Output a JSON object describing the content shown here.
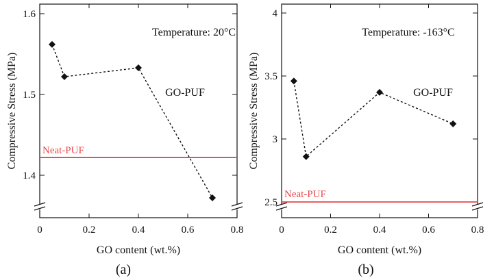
{
  "chart_data": [
    {
      "type": "line",
      "panel_label": "(a)",
      "annotation": "Temperature: 20°C",
      "xlabel": "GO content (wt.%)",
      "ylabel": "Compressive Stress (MPa)",
      "xlim": [
        0,
        0.8
      ],
      "ylim": [
        1.3,
        1.6
      ],
      "y_axis_break": true,
      "xticks": [
        0,
        0.2,
        0.4,
        0.6,
        0.8
      ],
      "xtick_labels": [
        "0",
        "0.2",
        "0.4",
        "0.6",
        "0.8"
      ],
      "yticks": [
        1.4,
        1.5,
        1.6
      ],
      "ytick_labels": [
        "1.4",
        "1.5",
        "1.6"
      ],
      "series": [
        {
          "name": "GO-PUF",
          "style": "dashed-with-diamond-markers",
          "color": "#111111",
          "x": [
            0.05,
            0.1,
            0.4,
            0.7
          ],
          "y": [
            1.562,
            1.522,
            1.533,
            1.372
          ]
        }
      ],
      "reference_lines": [
        {
          "name": "Neat-PUF",
          "y": 1.422,
          "color": "#e8474b"
        }
      ]
    },
    {
      "type": "line",
      "panel_label": "(b)",
      "annotation": "Temperature: -163°C",
      "xlabel": "GO content (wt.%)",
      "ylabel": "Compressive Stress (MPa)",
      "xlim": [
        0,
        0.8
      ],
      "ylim": [
        2.4,
        4.0
      ],
      "y_axis_break": true,
      "xticks": [
        0,
        0.2,
        0.4,
        0.6,
        0.8
      ],
      "xtick_labels": [
        "0",
        "0.2",
        "0.4",
        "0.6",
        "0.8"
      ],
      "yticks": [
        2.5,
        3,
        3.5,
        4
      ],
      "ytick_labels": [
        "2.5",
        "3",
        "3.5",
        "4"
      ],
      "series": [
        {
          "name": "GO-PUF",
          "style": "dashed-with-diamond-markers",
          "color": "#111111",
          "x": [
            0.05,
            0.1,
            0.4,
            0.7
          ],
          "y": [
            3.46,
            2.86,
            3.37,
            3.12
          ]
        }
      ],
      "reference_lines": [
        {
          "name": "Neat-PUF",
          "y": 2.5,
          "color": "#e8474b"
        }
      ]
    }
  ]
}
